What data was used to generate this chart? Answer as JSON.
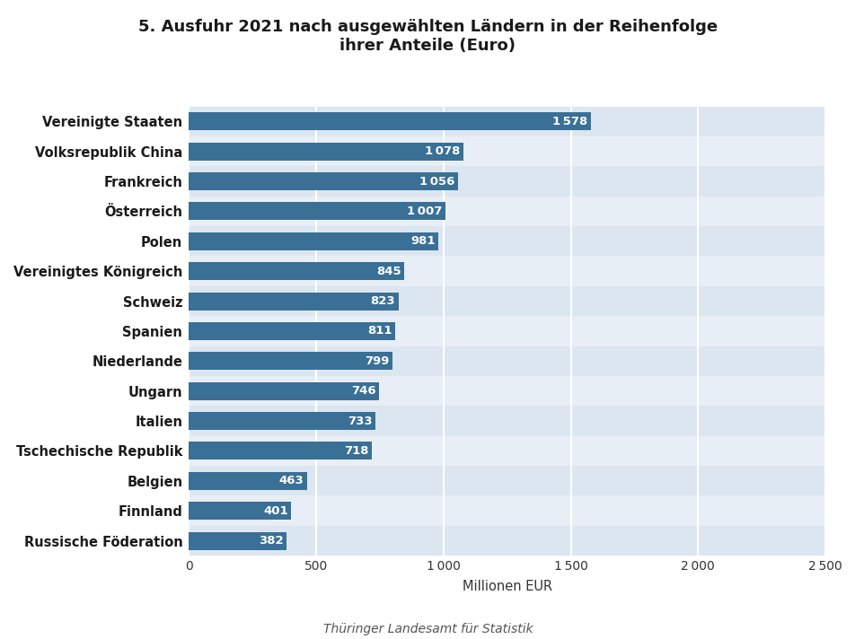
{
  "title": "5. Ausfuhr 2021 nach ausgewählten Ländern in der Reihenfolge\nihrer Anteile (Euro)",
  "categories": [
    "Russische Föderation",
    "Finnland",
    "Belgien",
    "Tschechische Republik",
    "Italien",
    "Ungarn",
    "Niederlande",
    "Spanien",
    "Schweiz",
    "Vereinigtes Königreich",
    "Polen",
    "Österreich",
    "Frankreich",
    "Volksrepublik China",
    "Vereinigte Staaten"
  ],
  "values": [
    382,
    401,
    463,
    718,
    733,
    746,
    799,
    811,
    823,
    845,
    981,
    1007,
    1056,
    1078,
    1578
  ],
  "bar_color": "#3a7096",
  "row_color_even": "#dce6f0",
  "row_color_odd": "#e8eef5",
  "fig_bg_color": "#ffffff",
  "xlabel": "Millionen EUR",
  "xlim": [
    0,
    2500
  ],
  "xticks": [
    0,
    500,
    1000,
    1500,
    2000,
    2500
  ],
  "footer": "Thüringer Landesamt für Statistik",
  "title_fontsize": 13,
  "label_fontsize": 10.5,
  "tick_fontsize": 10,
  "value_fontsize": 9.5
}
